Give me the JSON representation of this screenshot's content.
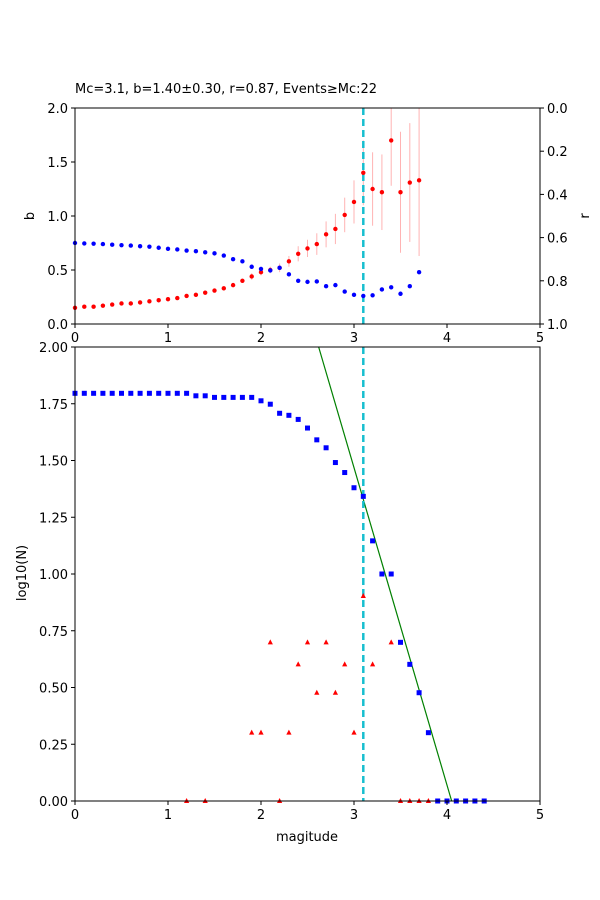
{
  "chart_data": [
    {
      "type": "scatter",
      "title": "Mc=3.1, b=1.40±0.30, r=0.87, Events≥Mc:22",
      "xlabel": "",
      "ylabel": "b",
      "ylabel_right": "r",
      "xlim": [
        0,
        5
      ],
      "ylim": [
        0,
        2.0
      ],
      "ylim_right": [
        1.0,
        0.0
      ],
      "x_ticks": [
        "0",
        "1",
        "2",
        "3",
        "4",
        "5"
      ],
      "y_ticks": [
        "0.0",
        "0.5",
        "1.0",
        "1.5",
        "2.0"
      ],
      "y_ticks_right": [
        "0.0",
        "0.2",
        "0.4",
        "0.6",
        "0.8",
        "1.0"
      ],
      "mc_line_x": 3.1,
      "mc_line_color": "#17becf",
      "series": [
        {
          "axis": "left",
          "color": "#ff0000",
          "x": [
            0.0,
            0.1,
            0.2,
            0.3,
            0.4,
            0.5,
            0.6,
            0.7,
            0.8,
            0.9,
            1.0,
            1.1,
            1.2,
            1.3,
            1.4,
            1.5,
            1.6,
            1.7,
            1.8,
            1.9,
            2.0,
            2.1,
            2.2,
            2.3,
            2.4,
            2.5,
            2.6,
            2.7,
            2.8,
            2.9,
            3.0,
            3.1,
            3.2,
            3.3,
            3.4,
            3.5,
            3.6,
            3.7
          ],
          "y": [
            0.15,
            0.16,
            0.16,
            0.17,
            0.18,
            0.19,
            0.19,
            0.2,
            0.21,
            0.22,
            0.23,
            0.24,
            0.26,
            0.27,
            0.29,
            0.31,
            0.33,
            0.36,
            0.4,
            0.44,
            0.48,
            0.5,
            0.52,
            0.58,
            0.65,
            0.7,
            0.74,
            0.83,
            0.88,
            1.01,
            1.13,
            1.4,
            1.25,
            1.22,
            1.7,
            1.22,
            1.31,
            1.33
          ],
          "err": [
            0.01,
            0.01,
            0.01,
            0.01,
            0.01,
            0.01,
            0.01,
            0.01,
            0.01,
            0.01,
            0.01,
            0.01,
            0.01,
            0.01,
            0.02,
            0.02,
            0.02,
            0.02,
            0.02,
            0.03,
            0.03,
            0.03,
            0.04,
            0.05,
            0.07,
            0.08,
            0.1,
            0.12,
            0.14,
            0.16,
            0.2,
            0.3,
            0.34,
            0.35,
            0.42,
            0.56,
            0.55,
            0.7
          ]
        },
        {
          "axis": "right",
          "color": "#0000ff",
          "x": [
            0.0,
            0.1,
            0.2,
            0.3,
            0.4,
            0.5,
            0.6,
            0.7,
            0.8,
            0.9,
            1.0,
            1.1,
            1.2,
            1.3,
            1.4,
            1.5,
            1.6,
            1.7,
            1.8,
            1.9,
            2.0,
            2.1,
            2.2,
            2.3,
            2.4,
            2.5,
            2.6,
            2.7,
            2.8,
            2.9,
            3.0,
            3.1,
            3.2,
            3.3,
            3.4,
            3.5,
            3.6,
            3.7
          ],
          "y": [
            0.625,
            0.627,
            0.628,
            0.63,
            0.633,
            0.635,
            0.637,
            0.64,
            0.642,
            0.647,
            0.652,
            0.655,
            0.66,
            0.663,
            0.668,
            0.673,
            0.683,
            0.7,
            0.71,
            0.735,
            0.745,
            0.752,
            0.74,
            0.77,
            0.8,
            0.805,
            0.803,
            0.825,
            0.82,
            0.85,
            0.865,
            0.87,
            0.867,
            0.84,
            0.83,
            0.86,
            0.825,
            0.76
          ]
        }
      ]
    },
    {
      "type": "scatter",
      "title": "",
      "xlabel": "magitude",
      "ylabel": "log10(N)",
      "xlim": [
        0,
        5
      ],
      "ylim": [
        0,
        2.0
      ],
      "x_ticks": [
        "0",
        "1",
        "2",
        "3",
        "4",
        "5"
      ],
      "y_ticks": [
        "0.00",
        "0.25",
        "0.50",
        "0.75",
        "1.00",
        "1.25",
        "1.50",
        "1.75",
        "2.00"
      ],
      "mc_line_x": 3.1,
      "mc_line_color": "#17becf",
      "fit_line": {
        "color": "#008000",
        "x": [
          2.62,
          4.05
        ],
        "y": [
          2.0,
          0.0
        ]
      },
      "series": [
        {
          "marker": "square",
          "color": "#0000ff",
          "x": [
            0.0,
            0.1,
            0.2,
            0.3,
            0.4,
            0.5,
            0.6,
            0.7,
            0.8,
            0.9,
            1.0,
            1.1,
            1.2,
            1.3,
            1.4,
            1.5,
            1.6,
            1.7,
            1.8,
            1.9,
            2.0,
            2.1,
            2.2,
            2.3,
            2.4,
            2.5,
            2.6,
            2.7,
            2.8,
            2.9,
            3.0,
            3.1,
            3.2,
            3.3,
            3.4,
            3.5,
            3.6,
            3.7,
            3.8,
            3.9,
            4.0,
            4.1,
            4.2,
            4.3,
            4.4
          ],
          "y": [
            1.796,
            1.796,
            1.796,
            1.796,
            1.796,
            1.796,
            1.796,
            1.796,
            1.796,
            1.796,
            1.796,
            1.796,
            1.796,
            1.785,
            1.785,
            1.778,
            1.778,
            1.778,
            1.778,
            1.778,
            1.763,
            1.748,
            1.708,
            1.699,
            1.681,
            1.643,
            1.591,
            1.556,
            1.491,
            1.447,
            1.38,
            1.342,
            1.146,
            1.0,
            1.0,
            0.699,
            0.602,
            0.477,
            0.301,
            0.0,
            0.0,
            0.0,
            0.0,
            0.0,
            0.0
          ]
        },
        {
          "marker": "triangle",
          "color": "#ff0000",
          "x": [
            1.2,
            1.4,
            1.9,
            2.0,
            2.1,
            2.2,
            2.3,
            2.4,
            2.5,
            2.6,
            2.7,
            2.8,
            2.9,
            3.0,
            3.1,
            3.2,
            3.4,
            3.5,
            3.6,
            3.7,
            3.8
          ],
          "y": [
            0.0,
            0.0,
            0.301,
            0.301,
            0.699,
            0.0,
            0.301,
            0.602,
            0.699,
            0.477,
            0.699,
            0.477,
            0.602,
            0.301,
            0.903,
            0.602,
            0.699,
            0.0,
            0.0,
            0.0,
            0.0
          ]
        }
      ]
    }
  ]
}
